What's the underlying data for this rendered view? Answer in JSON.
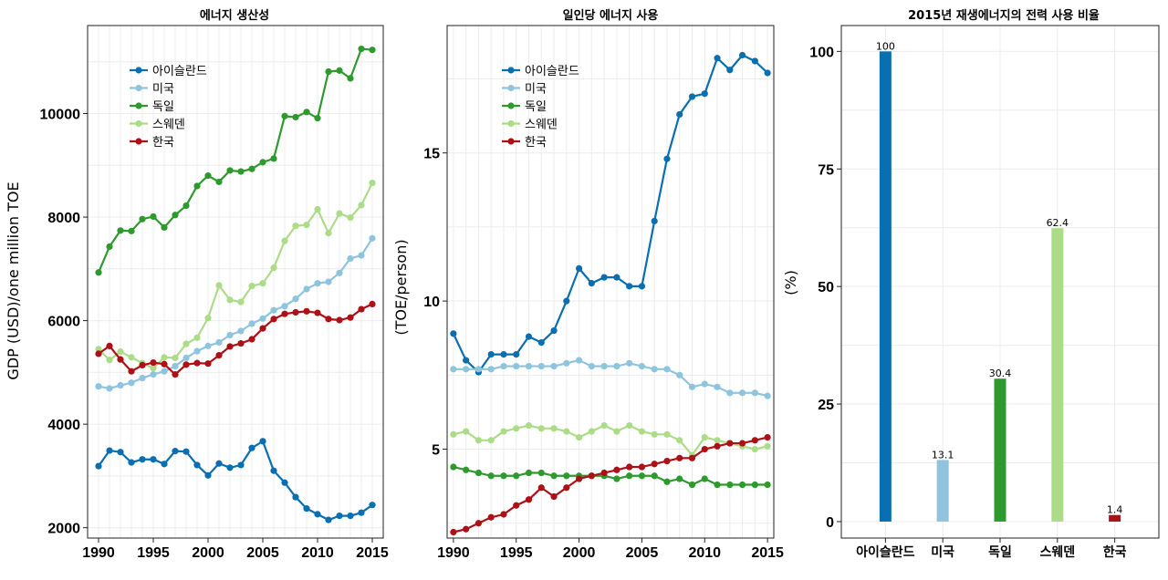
{
  "chart_data": [
    {
      "type": "line",
      "title": "에너지 생산성",
      "xlabel": "",
      "ylabel": "GDP (USD)/one million TOE",
      "x": [
        1990,
        1991,
        1992,
        1993,
        1994,
        1995,
        1996,
        1997,
        1998,
        1999,
        2000,
        2001,
        2002,
        2003,
        2004,
        2005,
        2006,
        2007,
        2008,
        2009,
        2010,
        2011,
        2012,
        2013,
        2014,
        2015
      ],
      "xticks": [
        "1990",
        "1995",
        "2000",
        "2005",
        "2010",
        "2015"
      ],
      "yticks": [
        "2000",
        "4000",
        "6000",
        "8000",
        "10000"
      ],
      "xlim": [
        1989,
        2016
      ],
      "ylim": [
        1800,
        11700
      ],
      "legend_position": "top-left",
      "series": [
        {
          "name": "아이슬란드",
          "color": "#0a6fb0",
          "values": [
            3190,
            3490,
            3460,
            3260,
            3320,
            3320,
            3230,
            3480,
            3470,
            3210,
            3010,
            3240,
            3160,
            3210,
            3540,
            3670,
            3100,
            2870,
            2590,
            2370,
            2260,
            2150,
            2230,
            2230,
            2290,
            2440
          ]
        },
        {
          "name": "미국",
          "color": "#8fc4df",
          "values": [
            4730,
            4690,
            4750,
            4800,
            4890,
            4960,
            5020,
            5120,
            5280,
            5410,
            5510,
            5580,
            5720,
            5800,
            5940,
            6040,
            6200,
            6280,
            6420,
            6610,
            6720,
            6750,
            6920,
            7200,
            7260,
            7590
          ]
        },
        {
          "name": "독일",
          "color": "#2e9a2e",
          "values": [
            6930,
            7430,
            7740,
            7730,
            7960,
            8010,
            7800,
            8040,
            8220,
            8600,
            8800,
            8680,
            8900,
            8880,
            8930,
            9060,
            9130,
            9950,
            9930,
            10030,
            9910,
            10810,
            10830,
            10680,
            11250,
            11230
          ]
        },
        {
          "name": "스웨덴",
          "color": "#acdc88",
          "values": [
            5450,
            5240,
            5400,
            5290,
            5180,
            5080,
            5290,
            5280,
            5550,
            5670,
            6050,
            6680,
            6400,
            6360,
            6670,
            6720,
            7020,
            7540,
            7830,
            7850,
            8150,
            7690,
            8070,
            7990,
            8230,
            8660
          ]
        },
        {
          "name": "한국",
          "color": "#ad1016",
          "values": [
            5360,
            5510,
            5250,
            5020,
            5140,
            5190,
            5160,
            4960,
            5150,
            5180,
            5170,
            5330,
            5500,
            5560,
            5640,
            5850,
            6030,
            6130,
            6160,
            6180,
            6150,
            6030,
            6010,
            6060,
            6220,
            6320
          ]
        }
      ]
    },
    {
      "type": "line",
      "title": "일인당 에너지 사용",
      "xlabel": "",
      "ylabel": "(TOE/person)",
      "x": [
        1990,
        1991,
        1992,
        1993,
        1994,
        1995,
        1996,
        1997,
        1998,
        1999,
        2000,
        2001,
        2002,
        2003,
        2004,
        2005,
        2006,
        2007,
        2008,
        2009,
        2010,
        2011,
        2012,
        2013,
        2014,
        2015
      ],
      "xticks": [
        "1990",
        "1995",
        "2000",
        "2005",
        "2010",
        "2015"
      ],
      "yticks": [
        "5",
        "10",
        "15"
      ],
      "xlim": [
        1989.5,
        2015.5
      ],
      "ylim": [
        2.0,
        19.3
      ],
      "legend_position": "top-left",
      "series": [
        {
          "name": "아이슬란드",
          "color": "#0a6fb0",
          "values": [
            8.9,
            8.0,
            7.6,
            8.2,
            8.2,
            8.2,
            8.8,
            8.6,
            9.0,
            10.0,
            11.1,
            10.6,
            10.8,
            10.8,
            10.5,
            10.5,
            12.7,
            14.8,
            16.3,
            16.9,
            17.0,
            18.2,
            17.8,
            18.3,
            18.1,
            17.7
          ]
        },
        {
          "name": "미국",
          "color": "#8fc4df",
          "values": [
            7.7,
            7.7,
            7.7,
            7.7,
            7.8,
            7.8,
            7.8,
            7.8,
            7.8,
            7.9,
            8.0,
            7.8,
            7.8,
            7.8,
            7.9,
            7.8,
            7.7,
            7.7,
            7.5,
            7.1,
            7.2,
            7.1,
            6.9,
            6.9,
            6.9,
            6.8
          ]
        },
        {
          "name": "독일",
          "color": "#2e9a2e",
          "values": [
            4.4,
            4.3,
            4.2,
            4.1,
            4.1,
            4.1,
            4.2,
            4.2,
            4.1,
            4.1,
            4.1,
            4.1,
            4.1,
            4.0,
            4.1,
            4.1,
            4.1,
            3.9,
            4.0,
            3.8,
            4.0,
            3.8,
            3.8,
            3.8,
            3.8,
            3.8
          ]
        },
        {
          "name": "스웨덴",
          "color": "#acdc88",
          "values": [
            5.5,
            5.6,
            5.3,
            5.3,
            5.6,
            5.7,
            5.8,
            5.7,
            5.7,
            5.6,
            5.4,
            5.6,
            5.8,
            5.6,
            5.8,
            5.6,
            5.5,
            5.5,
            5.3,
            4.8,
            5.4,
            5.3,
            5.2,
            5.1,
            5.0,
            5.1
          ]
        },
        {
          "name": "한국",
          "color": "#ad1016",
          "values": [
            2.2,
            2.3,
            2.5,
            2.7,
            2.8,
            3.1,
            3.3,
            3.7,
            3.4,
            3.7,
            4.0,
            4.1,
            4.2,
            4.3,
            4.4,
            4.4,
            4.5,
            4.6,
            4.7,
            4.7,
            5.0,
            5.1,
            5.2,
            5.2,
            5.3,
            5.4
          ]
        }
      ]
    },
    {
      "type": "bar",
      "title": "2015년 재생에너지의 전력 사용 비율",
      "xlabel": "",
      "ylabel": "(%)",
      "categories": [
        "아이슬란드",
        "미국",
        "독일",
        "스웨덴",
        "한국"
      ],
      "values": [
        100,
        13.1,
        30.4,
        62.4,
        1.4
      ],
      "value_labels": [
        "100",
        "13.1",
        "30.4",
        "62.4",
        "1.4"
      ],
      "colors": [
        "#0a6fb0",
        "#8fc4df",
        "#2e9a2e",
        "#acdc88",
        "#ad1016"
      ],
      "yticks": [
        "0",
        "25",
        "50",
        "75",
        "100"
      ],
      "ylim": [
        -3.5,
        105.5
      ]
    }
  ]
}
